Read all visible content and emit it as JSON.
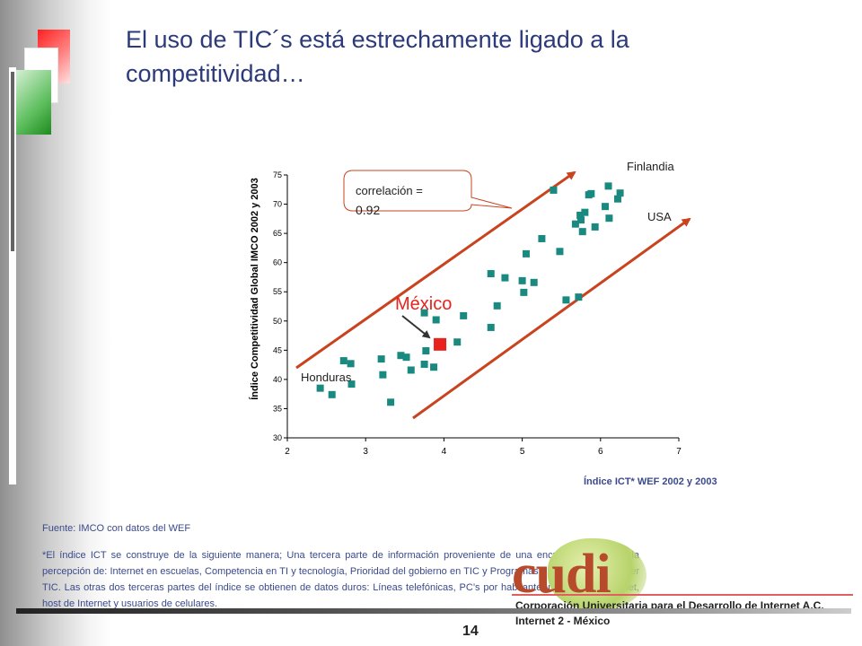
{
  "slide": {
    "title_line1": "El uso de TIC´s está estrechamente ligado a la",
    "title_line2": "competitividad…",
    "source": "Fuente: IMCO con datos del WEF",
    "note": "*El índice ICT se construye de la siguiente manera; Una tercera parte de información proveniente de una encuesta acerca de la percepción de: Internet en escuelas, Competencia en TI y tecnología, Prioridad del gobierno en TIC y Programas y leyes para promover TIC. Las otras dos terceras partes del índice se obtienen de datos duros: Líneas telefónicas, PC’s por habitante, usuarios de Internet, host de Internet y usuarios de celulares.",
    "page_number": "14"
  },
  "logo": {
    "text": "cudi",
    "org_line1": "Corporación Universitaria para el Desarrollo de Internet A.C.",
    "org_line2": "Internet 2 - México"
  },
  "colors": {
    "title": "#2b3a7a",
    "points": "#1a8a80",
    "highlight": "#e8231c",
    "arrows": "#c8431e",
    "callout_border": "#c8431e"
  },
  "chart_data": {
    "type": "scatter",
    "xlabel": "Índice ICT* WEF 2002 y 2003",
    "ylabel": "Índice Competitividad Global IMCO 2002 y 2003",
    "xlim": [
      2,
      7
    ],
    "ylim": [
      30,
      75
    ],
    "xticks": [
      "2",
      "3",
      "4",
      "5",
      "6",
      "7"
    ],
    "yticks": [
      "30",
      "35",
      "40",
      "45",
      "50",
      "55",
      "60",
      "65",
      "70",
      "75"
    ],
    "callout": "correlación = 0.92",
    "labels": {
      "finlandia": "Finlandia",
      "usa": "USA",
      "honduras": "Honduras",
      "mexico": "México"
    },
    "highlight_point": {
      "x": 3.95,
      "y": 46
    },
    "points": [
      [
        2.42,
        38.5
      ],
      [
        2.57,
        37.4
      ],
      [
        2.72,
        43.2
      ],
      [
        2.81,
        42.7
      ],
      [
        2.82,
        39.2
      ],
      [
        3.2,
        43.5
      ],
      [
        3.22,
        40.8
      ],
      [
        3.32,
        36.1
      ],
      [
        3.45,
        44.1
      ],
      [
        3.52,
        43.8
      ],
      [
        3.58,
        41.6
      ],
      [
        3.75,
        42.6
      ],
      [
        3.77,
        44.9
      ],
      [
        3.75,
        51.4
      ],
      [
        3.87,
        42.1
      ],
      [
        3.9,
        50.2
      ],
      [
        4.17,
        46.4
      ],
      [
        4.25,
        50.9
      ],
      [
        4.6,
        48.9
      ],
      [
        4.6,
        58.1
      ],
      [
        4.68,
        52.6
      ],
      [
        4.78,
        57.4
      ],
      [
        5.0,
        56.9
      ],
      [
        5.02,
        54.9
      ],
      [
        5.05,
        61.5
      ],
      [
        5.15,
        56.6
      ],
      [
        5.25,
        64.1
      ],
      [
        5.4,
        72.4
      ],
      [
        5.48,
        61.9
      ],
      [
        5.56,
        53.6
      ],
      [
        5.68,
        66.6
      ],
      [
        5.72,
        54.1
      ],
      [
        5.74,
        68.1
      ],
      [
        5.75,
        67.3
      ],
      [
        5.77,
        65.3
      ],
      [
        5.8,
        68.6
      ],
      [
        5.85,
        71.6
      ],
      [
        5.88,
        71.8
      ],
      [
        5.93,
        66.1
      ],
      [
        6.06,
        69.6
      ],
      [
        6.1,
        73.1
      ],
      [
        6.11,
        67.6
      ],
      [
        6.22,
        70.9
      ],
      [
        6.25,
        71.9
      ]
    ]
  }
}
